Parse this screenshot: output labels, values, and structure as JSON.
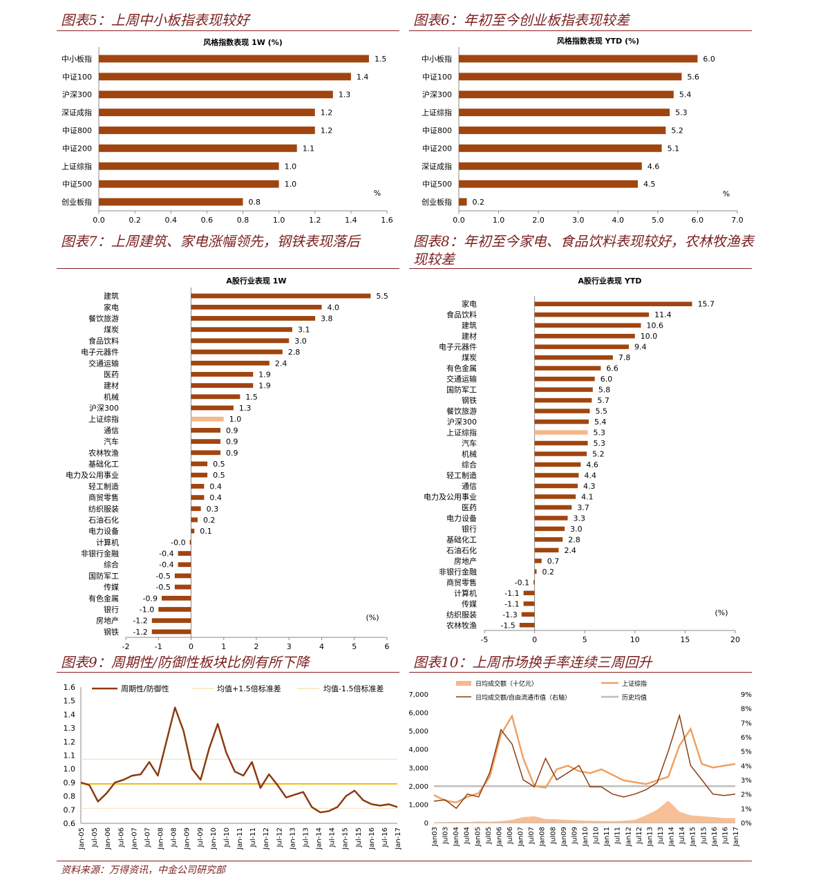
{
  "titles": {
    "c5": "图表5：上周中小板指表现较好",
    "c6": "图表6：年初至今创业板指表现较差",
    "c7": "图表7：上周建筑、家电涨幅领先，钢铁表现落后",
    "c8a": "图表8：年初至今家电、食品饮料表现较好，农林牧渔表",
    "c8b": "现较差",
    "c9": "图表9：周期性/防御性板块比例有所下降",
    "c10": "图表10：上周市场换手率连续三周回升"
  },
  "footer": "资料来源：万得资讯，中金公司研究部",
  "colors": {
    "bar": "#a0450f",
    "highlight": "#f6b88a",
    "title": "#7a1f1f",
    "line": "#8b3a0f",
    "orange": "#f0a060",
    "gold": "#f5b800",
    "gray": "#bdbdbd"
  },
  "chart_data": [
    {
      "type": "bar",
      "orientation": "horizontal",
      "title": "风格指数表现 1W (%)",
      "unit_label": "%",
      "categories": [
        "中小板指",
        "中证100",
        "沪深300",
        "深证成指",
        "中证800",
        "中证200",
        "上证综指",
        "中证500",
        "创业板指"
      ],
      "values": [
        1.5,
        1.4,
        1.3,
        1.2,
        1.2,
        1.1,
        1.0,
        1.0,
        0.8
      ],
      "labels": [
        "1.5",
        "1.4",
        "1.3",
        "1.2",
        "1.2",
        "1.1",
        "1.0",
        "1.0",
        "0.8"
      ],
      "xlim": [
        0,
        1.6
      ],
      "ticks": [
        "0.0",
        "0.2",
        "0.4",
        "0.6",
        "0.8",
        "1.0",
        "1.2",
        "1.4",
        "1.6"
      ]
    },
    {
      "type": "bar",
      "orientation": "horizontal",
      "title": "风格指数表现 YTD (%)",
      "unit_label": "%",
      "categories": [
        "中小板指",
        "中证100",
        "沪深300",
        "上证综指",
        "中证800",
        "中证200",
        "深证成指",
        "中证500",
        "创业板指"
      ],
      "values": [
        6.0,
        5.6,
        5.4,
        5.3,
        5.2,
        5.1,
        4.6,
        4.5,
        0.2
      ],
      "labels": [
        "6.0",
        "5.6",
        "5.4",
        "5.3",
        "5.2",
        "5.1",
        "4.6",
        "4.5",
        "0.2"
      ],
      "xlim": [
        0,
        7
      ],
      "ticks": [
        "0.0",
        "1.0",
        "2.0",
        "3.0",
        "4.0",
        "5.0",
        "6.0",
        "7.0"
      ]
    },
    {
      "type": "bar",
      "orientation": "horizontal",
      "title": "A股行业表现 1W",
      "unit_label": "(%)",
      "categories": [
        "建筑",
        "家电",
        "餐饮旅游",
        "煤炭",
        "食品饮料",
        "电子元器件",
        "交通运输",
        "医药",
        "建材",
        "机械",
        "沪深300",
        "上证综指",
        "通信",
        "汽车",
        "农林牧渔",
        "基础化工",
        "电力及公用事业",
        "轻工制造",
        "商贸零售",
        "纺织服装",
        "石油石化",
        "电力设备",
        "计算机",
        "非银行金融",
        "综合",
        "国防军工",
        "传媒",
        "有色金属",
        "银行",
        "房地产",
        "钢铁"
      ],
      "values": [
        5.5,
        4.0,
        3.8,
        3.1,
        3.0,
        2.8,
        2.4,
        1.9,
        1.9,
        1.5,
        1.3,
        1.0,
        0.9,
        0.9,
        0.9,
        0.5,
        0.5,
        0.4,
        0.4,
        0.3,
        0.2,
        0.1,
        -0.04,
        -0.4,
        -0.4,
        -0.5,
        -0.5,
        -0.9,
        -1.0,
        -1.2,
        -1.2
      ],
      "labels": [
        "5.5",
        "4.0",
        "3.8",
        "3.1",
        "3.0",
        "2.8",
        "2.4",
        "1.9",
        "1.9",
        "1.5",
        "1.3",
        "1.0",
        "0.9",
        "0.9",
        "0.9",
        "0.5",
        "0.5",
        "0.4",
        "0.4",
        "0.3",
        "0.2",
        "0.1",
        "-0.0",
        "-0.4",
        "-0.4",
        "-0.5",
        "-0.5",
        "-0.9",
        "-1.0",
        "-1.2",
        "-1.2"
      ],
      "highlight": "上证综指",
      "xlim": [
        -2,
        6
      ],
      "ticks": [
        "-2",
        "-1",
        "0",
        "1",
        "2",
        "3",
        "4",
        "5",
        "6"
      ]
    },
    {
      "type": "bar",
      "orientation": "horizontal",
      "title": "A股行业表现 YTD",
      "unit_label": "(%)",
      "categories": [
        "家电",
        "食品饮料",
        "建筑",
        "建材",
        "电子元器件",
        "煤炭",
        "有色金属",
        "交通运输",
        "国防军工",
        "钢铁",
        "餐饮旅游",
        "沪深300",
        "上证综指",
        "汽车",
        "机械",
        "综合",
        "轻工制造",
        "通信",
        "电力及公用事业",
        "医药",
        "电力设备",
        "银行",
        "基础化工",
        "石油石化",
        "房地产",
        "非银行金融",
        "商贸零售",
        "计算机",
        "传媒",
        "纺织服装",
        "农林牧渔"
      ],
      "values": [
        15.7,
        11.4,
        10.6,
        10.0,
        9.4,
        7.8,
        6.6,
        6.0,
        5.8,
        5.7,
        5.5,
        5.4,
        5.3,
        5.3,
        5.2,
        4.6,
        4.4,
        4.3,
        4.1,
        3.7,
        3.3,
        3.0,
        2.8,
        2.4,
        0.7,
        0.2,
        -0.1,
        -1.1,
        -1.1,
        -1.3,
        -1.5
      ],
      "labels": [
        "15.7",
        "11.4",
        "10.6",
        "10.0",
        "9.4",
        "7.8",
        "6.6",
        "6.0",
        "5.8",
        "5.7",
        "5.5",
        "5.4",
        "5.3",
        "5.3",
        "5.2",
        "4.6",
        "4.4",
        "4.3",
        "4.1",
        "3.7",
        "3.3",
        "3.0",
        "2.8",
        "2.4",
        "0.7",
        "0.2",
        "-0.1",
        "-1.1",
        "-1.1",
        "-1.3",
        "-1.5"
      ],
      "highlight": "上证综指",
      "xlim": [
        -5,
        20
      ],
      "ticks": [
        "-5",
        "0",
        "5",
        "10",
        "15",
        "20"
      ]
    },
    {
      "type": "line",
      "series": [
        {
          "name": "周期性/防御性",
          "values": [
            0.9,
            0.88,
            0.76,
            0.82,
            0.9,
            0.92,
            0.95,
            0.96,
            1.05,
            0.95,
            1.2,
            1.45,
            1.28,
            1.0,
            0.92,
            1.15,
            1.33,
            1.12,
            0.98,
            0.95,
            1.05,
            0.86,
            0.96,
            0.88,
            0.79,
            0.81,
            0.83,
            0.72,
            0.68,
            0.69,
            0.72,
            0.8,
            0.84,
            0.77,
            0.74,
            0.73,
            0.74,
            0.72
          ]
        },
        {
          "name": "均值+1.5倍标准差",
          "values": [
            1.07
          ]
        },
        {
          "name": "均值-1.5倍标准差",
          "values": [
            0.71
          ]
        },
        {
          "name": "均值",
          "values": [
            0.89
          ]
        }
      ],
      "x_ticks": [
        "Jan-05",
        "Jul-05",
        "Jan-06",
        "Jul-06",
        "Jan-07",
        "Jul-07",
        "Jan-08",
        "Jul-08",
        "Jan-09",
        "Jul-09",
        "Jan-10",
        "Jul-10",
        "Jan-11",
        "Jul-11",
        "Jan-12",
        "Jul-12",
        "Jan-13",
        "Jul-13",
        "Jan-14",
        "Jul-14",
        "Jan-15",
        "Jul-15",
        "Jan-16",
        "Jul-16",
        "Jan-17"
      ],
      "ylim": [
        0.6,
        1.6
      ],
      "y_ticks": [
        "0.6",
        "0.7",
        "0.8",
        "0.9",
        "1.0",
        "1.1",
        "1.2",
        "1.3",
        "1.4",
        "1.5",
        "1.6"
      ]
    },
    {
      "type": "area",
      "series": [
        {
          "name": "日均成交额（十亿元）",
          "values": [
            20,
            30,
            40,
            30,
            60,
            50,
            80,
            150,
            300,
            350,
            200,
            180,
            150,
            120,
            100,
            90,
            80,
            100,
            150,
            400,
            700,
            1200,
            600,
            400,
            350,
            300,
            250,
            250
          ]
        },
        {
          "name": "上证综指",
          "values": [
            1500,
            1200,
            1100,
            1400,
            1600,
            2500,
            4800,
            5800,
            3500,
            2000,
            1900,
            2900,
            3100,
            2800,
            2700,
            2900,
            2600,
            2300,
            2200,
            2100,
            2300,
            2500,
            4200,
            5100,
            3200,
            3000,
            3100,
            3200
          ]
        },
        {
          "name": "日均成交额/自由流通市值（右轴）",
          "values": [
            1.5,
            1.6,
            1.0,
            2.0,
            1.8,
            3.5,
            6.5,
            5.5,
            3.0,
            2.5,
            4.5,
            3.0,
            3.5,
            4.0,
            2.5,
            2.5,
            2.0,
            1.8,
            2.0,
            2.3,
            2.8,
            5.0,
            7.5,
            4.0,
            3.0,
            2.0,
            1.9,
            2.0
          ]
        },
        {
          "name": "历史均值",
          "values": [
            2.55
          ]
        }
      ],
      "x_ticks": [
        "Jan03",
        "Jul03",
        "Jan04",
        "Jul04",
        "Jan05",
        "Jul05",
        "Jan06",
        "Jul06",
        "Jan07",
        "Jul07",
        "Jan08",
        "Jul08",
        "Jan09",
        "Jul09",
        "Jan10",
        "Jul10",
        "Jan11",
        "Jul11",
        "Jan12",
        "Jul12",
        "Jan13",
        "Jul13",
        "Jan14",
        "Jul14",
        "Jan15",
        "Jul15",
        "Jan16",
        "Jul16",
        "Jan17"
      ],
      "ylim_left": [
        0,
        7000
      ],
      "y_left_ticks": [
        "0",
        "1,000",
        "2,000",
        "3,000",
        "4,000",
        "5,000",
        "6,000",
        "7,000"
      ],
      "ylim_right": [
        0,
        9
      ],
      "y_right_ticks": [
        "0%",
        "1%",
        "2%",
        "3%",
        "4%",
        "5%",
        "6%",
        "7%",
        "8%",
        "9%"
      ]
    }
  ]
}
